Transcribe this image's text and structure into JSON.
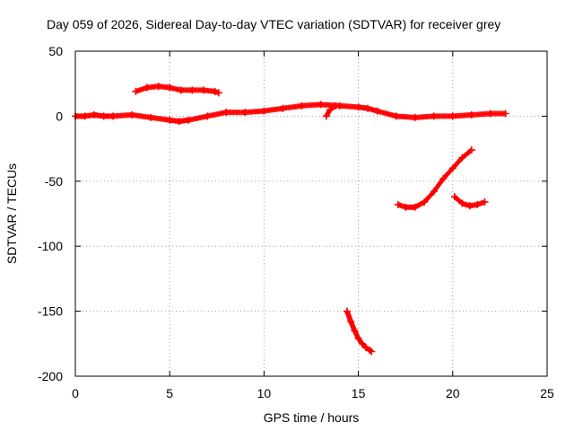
{
  "chart_data": {
    "type": "scatter",
    "title": "Day 059 of 2026, Sidereal Day-to-day VTEC variation (SDTVAR) for receiver grey",
    "xlabel": "GPS time / hours",
    "ylabel": "SDTVAR / TECUs",
    "xlim": [
      0,
      25
    ],
    "ylim": [
      -200,
      50
    ],
    "xticks": [
      0,
      5,
      10,
      15,
      20,
      25
    ],
    "yticks": [
      -200,
      -150,
      -100,
      -50,
      0,
      50
    ],
    "xtick_labels": [
      "0",
      "5",
      "10",
      "15",
      "20",
      "25"
    ],
    "ytick_labels": [
      "-200",
      "-150",
      "-100",
      "-50",
      "0",
      "50"
    ],
    "grid": true,
    "marker": "plus",
    "series_color": "#ff0000",
    "series": [
      {
        "name": "main-trace",
        "x": [
          0,
          0.5,
          1,
          1.5,
          2,
          3,
          4,
          5,
          5.5,
          6,
          7,
          8,
          9,
          10,
          11,
          12,
          13,
          14,
          15,
          15.5,
          16,
          17,
          18,
          19,
          20,
          21,
          22,
          22.8
        ],
        "y": [
          0,
          0,
          1,
          0,
          0,
          1,
          -1,
          -3,
          -4,
          -3,
          0,
          3,
          3,
          4,
          6,
          8,
          9,
          8,
          7,
          6,
          4,
          0,
          -1,
          0,
          0,
          1,
          2,
          2
        ]
      },
      {
        "name": "arc-upper",
        "x": [
          3.2,
          3.8,
          4.4,
          5,
          5.6,
          6.2,
          6.8,
          7.4,
          7.6
        ],
        "y": [
          19,
          22,
          23,
          22,
          20,
          20,
          20,
          19,
          18
        ]
      },
      {
        "name": "short-dip",
        "x": [
          13.3,
          13.5,
          13.8
        ],
        "y": [
          0,
          5,
          8
        ]
      },
      {
        "name": "descent",
        "x": [
          14.4,
          14.6,
          14.8,
          15.0,
          15.2,
          15.4,
          15.6,
          15.7
        ],
        "y": [
          -150,
          -158,
          -165,
          -171,
          -175,
          -178,
          -180,
          -181
        ]
      },
      {
        "name": "rising-arc",
        "x": [
          17.1,
          17.5,
          18,
          18.5,
          19,
          19.5,
          20,
          20.5,
          21.0
        ],
        "y": [
          -68,
          -70,
          -70,
          -66,
          -58,
          -48,
          -40,
          -32,
          -26
        ]
      },
      {
        "name": "late-arc",
        "x": [
          20.1,
          20.5,
          20.9,
          21.3,
          21.7
        ],
        "y": [
          -62,
          -67,
          -69,
          -68,
          -66
        ]
      }
    ]
  }
}
